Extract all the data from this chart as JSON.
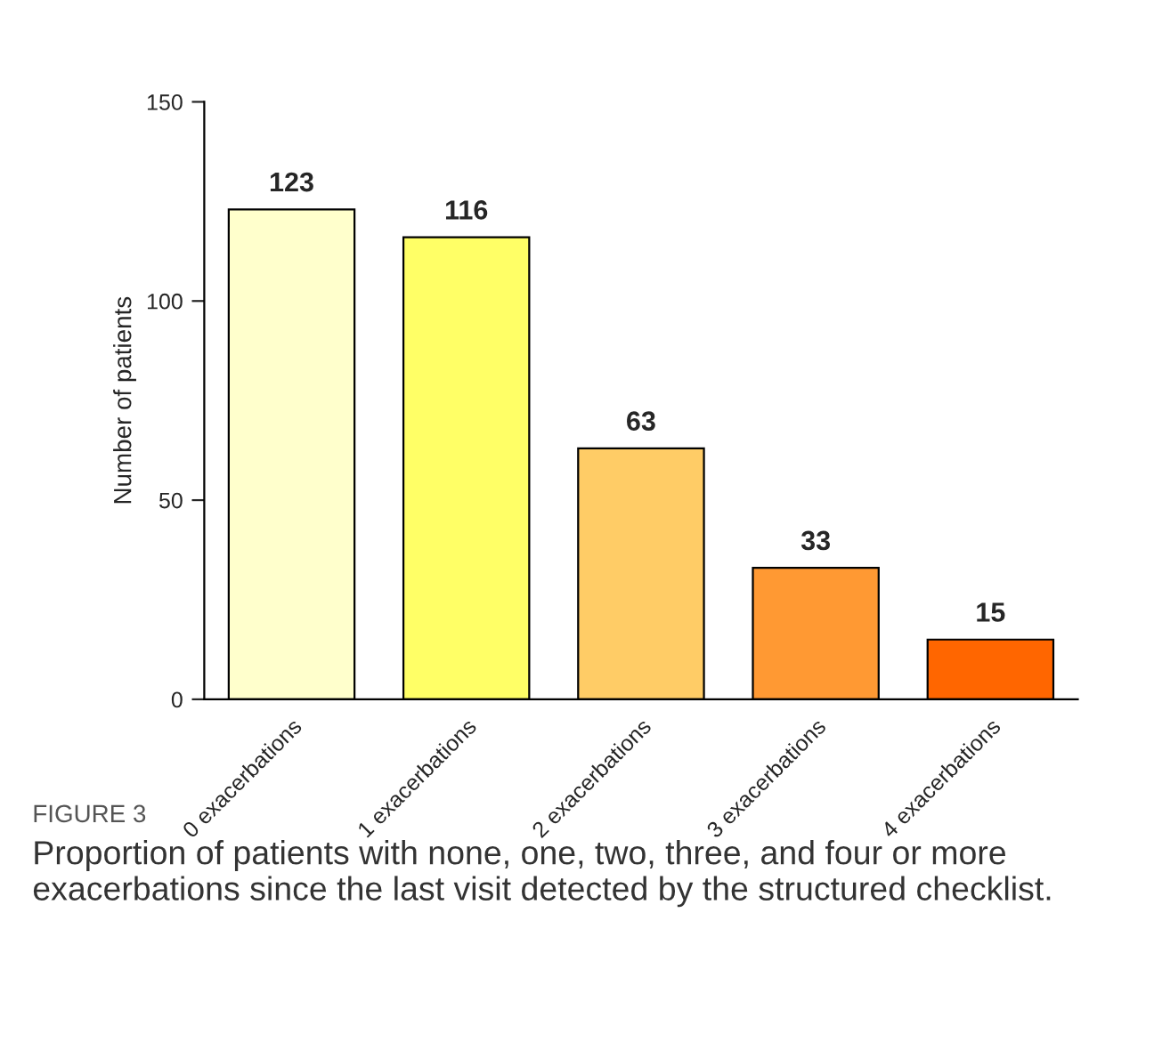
{
  "chart_data": {
    "type": "bar",
    "ylabel": "Number of patients",
    "categories": [
      "0 exacerbations",
      "1 exacerbations",
      "2 exacerbations",
      "3 exacerbations",
      "4 exacerbations"
    ],
    "values": [
      123,
      116,
      63,
      33,
      15
    ],
    "colors": [
      "#ffffcc",
      "#ffff66",
      "#ffcc66",
      "#ff9933",
      "#ff6600"
    ],
    "ylim": [
      0,
      150
    ],
    "yticks": [
      0,
      50,
      100,
      150
    ],
    "grid": false,
    "data_labels": true,
    "annotations": [
      "FIGURE 3",
      "Proportion of patients with none, one, two, three, and four or more exacerbations since the last visit detected by the structured checklist."
    ]
  }
}
